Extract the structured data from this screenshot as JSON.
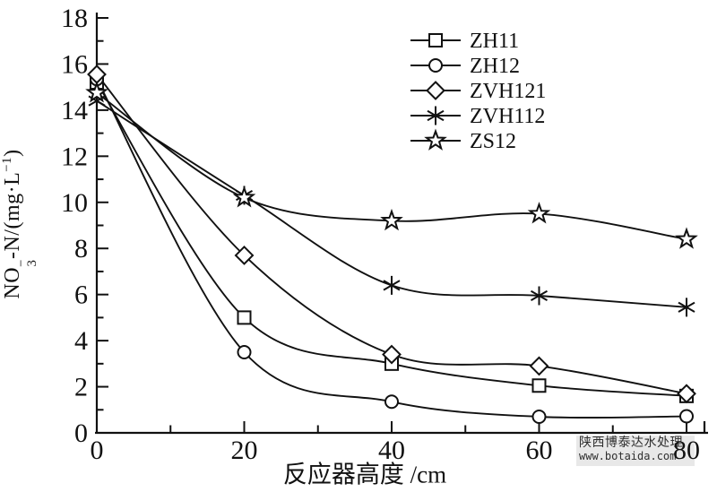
{
  "chart_data": {
    "type": "line",
    "title": "",
    "xlabel": "反应器高度 /cm",
    "ylabel": "NO3−-N/(mg·L−1)",
    "ylabel_parts": {
      "prefix": "NO",
      "sup": "−",
      "sub": "3",
      "mid": "-N/(mg·L",
      "exp": "−1",
      "close": ")"
    },
    "xlim": [
      0,
      80
    ],
    "ylim": [
      0,
      18
    ],
    "x": [
      0,
      20,
      40,
      60,
      80
    ],
    "x_major_ticks": [
      0,
      20,
      40,
      60,
      80
    ],
    "x_minor_ticks": [
      10,
      30,
      50,
      70
    ],
    "y_major_ticks": [
      0,
      2,
      4,
      6,
      8,
      10,
      12,
      14,
      16,
      18
    ],
    "y_minor_ticks": [
      1,
      3,
      5,
      7,
      9,
      11,
      13,
      15,
      17
    ],
    "grid": false,
    "legend_position": "top-center",
    "line_color": "#111111",
    "series": [
      {
        "name": "ZH11",
        "marker": "square",
        "values": [
          15.2,
          5.0,
          3.0,
          2.05,
          1.6
        ]
      },
      {
        "name": "ZH12",
        "marker": "circle",
        "values": [
          15.35,
          3.5,
          1.35,
          0.7,
          0.72
        ]
      },
      {
        "name": "ZVH121",
        "marker": "diamond",
        "values": [
          15.55,
          7.7,
          3.4,
          2.9,
          1.7
        ]
      },
      {
        "name": "ZVH112",
        "marker": "asterisk",
        "values": [
          14.4,
          10.3,
          6.4,
          5.95,
          5.45
        ]
      },
      {
        "name": "ZS12",
        "marker": "star",
        "values": [
          14.75,
          10.2,
          9.2,
          9.5,
          8.4
        ]
      }
    ]
  },
  "watermark": {
    "line1": "陕西博泰达水处理",
    "line2": "www.botaida.com"
  }
}
